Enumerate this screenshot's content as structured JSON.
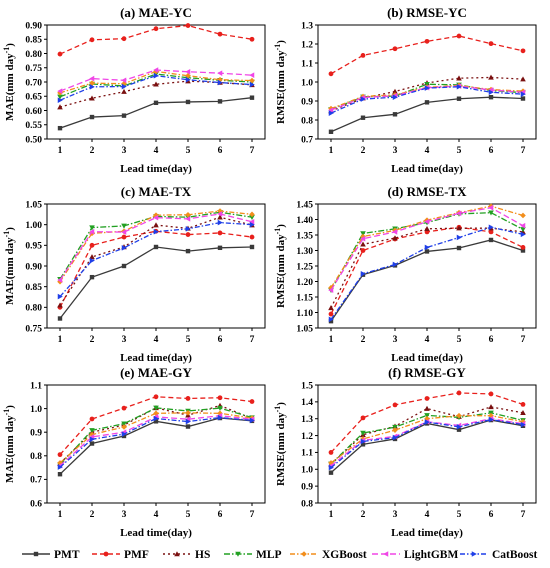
{
  "series_styles": [
    {
      "name": "PMT",
      "color": "#3a3a3a",
      "dash": "",
      "marker": "square"
    },
    {
      "name": "PMF",
      "color": "#e8201c",
      "dash": "5,3",
      "marker": "circle"
    },
    {
      "name": "HS",
      "color": "#7a1010",
      "dash": "2,3",
      "marker": "triangle-up"
    },
    {
      "name": "MLP",
      "color": "#22a022",
      "dash": "6,2,1.5,2",
      "marker": "triangle-down"
    },
    {
      "name": "XGBoost",
      "color": "#f28e1c",
      "dash": "5,2,1.5,2",
      "marker": "diamond"
    },
    {
      "name": "LightGBM",
      "color": "#f046e6",
      "dash": "6,3",
      "marker": "triangle-left"
    },
    {
      "name": "CatBoost",
      "color": "#1f3fe8",
      "dash": "5,2,1.5,2",
      "marker": "triangle-right"
    }
  ],
  "chart_data": [
    {
      "type": "line",
      "title": "(a) MAE-YC",
      "xlabel": "Lead time(day)",
      "ylabel": "MAE(mm day-1)",
      "categories": [
        1,
        2,
        3,
        4,
        5,
        6,
        7
      ],
      "ylim": [
        0.5,
        0.9
      ],
      "yticks": [
        "0.50",
        "0.55",
        "0.60",
        "0.65",
        "0.70",
        "0.75",
        "0.80",
        "0.85",
        "0.90"
      ],
      "ytick_values": [
        0.5,
        0.55,
        0.6,
        0.65,
        0.7,
        0.75,
        0.8,
        0.85,
        0.9
      ],
      "series": [
        {
          "name": "PMT",
          "values": [
            0.538,
            0.577,
            0.582,
            0.627,
            0.63,
            0.632,
            0.645
          ]
        },
        {
          "name": "PMF",
          "values": [
            0.798,
            0.848,
            0.852,
            0.887,
            0.898,
            0.868,
            0.85
          ]
        },
        {
          "name": "HS",
          "values": [
            0.612,
            0.643,
            0.666,
            0.692,
            0.703,
            0.698,
            0.69
          ]
        },
        {
          "name": "MLP",
          "values": [
            0.648,
            0.693,
            0.686,
            0.728,
            0.715,
            0.706,
            0.7
          ]
        },
        {
          "name": "XGBoost",
          "values": [
            0.662,
            0.696,
            0.694,
            0.737,
            0.722,
            0.708,
            0.705
          ]
        },
        {
          "name": "LightGBM",
          "values": [
            0.668,
            0.712,
            0.706,
            0.742,
            0.736,
            0.731,
            0.724
          ]
        },
        {
          "name": "CatBoost",
          "values": [
            0.636,
            0.683,
            0.684,
            0.722,
            0.708,
            0.698,
            0.691
          ]
        }
      ]
    },
    {
      "type": "line",
      "title": "(b) RMSE-YC",
      "xlabel": "Lead time(day)",
      "ylabel": "RMSE(mm day-1)",
      "categories": [
        1,
        2,
        3,
        4,
        5,
        6,
        7
      ],
      "ylim": [
        0.7,
        1.3
      ],
      "yticks": [
        "0.7",
        "0.8",
        "0.9",
        "1.0",
        "1.1",
        "1.2",
        "1.3"
      ],
      "ytick_values": [
        0.7,
        0.8,
        0.9,
        1.0,
        1.1,
        1.2,
        1.3
      ],
      "series": [
        {
          "name": "PMT",
          "values": [
            0.738,
            0.812,
            0.83,
            0.893,
            0.912,
            0.92,
            0.913
          ]
        },
        {
          "name": "PMF",
          "values": [
            1.043,
            1.14,
            1.175,
            1.214,
            1.242,
            1.202,
            1.164
          ]
        },
        {
          "name": "HS",
          "values": [
            0.847,
            0.915,
            0.95,
            0.995,
            1.02,
            1.024,
            1.015
          ]
        },
        {
          "name": "MLP",
          "values": [
            0.855,
            0.922,
            0.926,
            0.988,
            0.985,
            0.955,
            0.944
          ]
        },
        {
          "name": "XGBoost",
          "values": [
            0.86,
            0.924,
            0.932,
            0.972,
            0.982,
            0.96,
            0.952
          ]
        },
        {
          "name": "LightGBM",
          "values": [
            0.852,
            0.918,
            0.928,
            0.97,
            0.978,
            0.958,
            0.946
          ]
        },
        {
          "name": "CatBoost",
          "values": [
            0.836,
            0.91,
            0.92,
            0.968,
            0.975,
            0.946,
            0.936
          ]
        }
      ]
    },
    {
      "type": "line",
      "title": "(c) MAE-TX",
      "xlabel": "Lead time(day)",
      "ylabel": "MAE(mm day-1)",
      "categories": [
        1,
        2,
        3,
        4,
        5,
        6,
        7
      ],
      "ylim": [
        0.75,
        1.05
      ],
      "yticks": [
        "0.75",
        "0.80",
        "0.85",
        "0.90",
        "0.95",
        "1.00",
        "1.05"
      ],
      "ytick_values": [
        0.75,
        0.8,
        0.85,
        0.9,
        0.95,
        1.0,
        1.05
      ],
      "series": [
        {
          "name": "PMT",
          "values": [
            0.773,
            0.873,
            0.9,
            0.946,
            0.936,
            0.944,
            0.946
          ]
        },
        {
          "name": "PMF",
          "values": [
            0.8,
            0.95,
            0.97,
            0.984,
            0.976,
            0.98,
            0.97
          ]
        },
        {
          "name": "HS",
          "values": [
            0.805,
            0.922,
            0.946,
            0.999,
            0.991,
            1.018,
            0.999
          ]
        },
        {
          "name": "MLP",
          "values": [
            0.868,
            0.993,
            0.997,
            1.02,
            1.018,
            1.03,
            1.018
          ]
        },
        {
          "name": "XGBoost",
          "values": [
            0.862,
            0.979,
            0.984,
            1.023,
            1.024,
            1.033,
            1.025
          ]
        },
        {
          "name": "LightGBM",
          "values": [
            0.866,
            0.983,
            0.982,
            1.017,
            1.014,
            1.026,
            1.007
          ]
        },
        {
          "name": "CatBoost",
          "values": [
            0.826,
            0.913,
            0.944,
            0.983,
            0.99,
            1.005,
            1.0
          ]
        }
      ]
    },
    {
      "type": "line",
      "title": "(d) RMSE-TX",
      "xlabel": "Lead time(day)",
      "ylabel": "RMSE(mm day-1)",
      "categories": [
        1,
        2,
        3,
        4,
        5,
        6,
        7
      ],
      "ylim": [
        1.05,
        1.45
      ],
      "yticks": [
        "1.05",
        "1.10",
        "1.15",
        "1.20",
        "1.25",
        "1.30",
        "1.35",
        "1.40",
        "1.45"
      ],
      "ytick_values": [
        1.05,
        1.1,
        1.15,
        1.2,
        1.25,
        1.3,
        1.35,
        1.4,
        1.45
      ],
      "series": [
        {
          "name": "PMT",
          "values": [
            1.072,
            1.222,
            1.252,
            1.297,
            1.308,
            1.334,
            1.3
          ]
        },
        {
          "name": "PMF",
          "values": [
            1.095,
            1.3,
            1.337,
            1.36,
            1.375,
            1.36,
            1.31
          ]
        },
        {
          "name": "HS",
          "values": [
            1.115,
            1.32,
            1.34,
            1.37,
            1.372,
            1.372,
            1.36
          ]
        },
        {
          "name": "MLP",
          "values": [
            1.172,
            1.355,
            1.37,
            1.39,
            1.418,
            1.422,
            1.368
          ]
        },
        {
          "name": "XGBoost",
          "values": [
            1.18,
            1.345,
            1.365,
            1.398,
            1.422,
            1.443,
            1.413
          ]
        },
        {
          "name": "LightGBM",
          "values": [
            1.172,
            1.338,
            1.36,
            1.393,
            1.42,
            1.438,
            1.38
          ]
        },
        {
          "name": "CatBoost",
          "values": [
            1.078,
            1.225,
            1.255,
            1.31,
            1.342,
            1.375,
            1.352
          ]
        }
      ]
    },
    {
      "type": "line",
      "title": "(e) MAE-GY",
      "xlabel": "Lead time(day)",
      "ylabel": "MAE(mm day-1)",
      "categories": [
        1,
        2,
        3,
        4,
        5,
        6,
        7
      ],
      "ylim": [
        0.6,
        1.1
      ],
      "yticks": [
        "0.6",
        "0.7",
        "0.8",
        "0.9",
        "1.0",
        "1.1"
      ],
      "ytick_values": [
        0.6,
        0.7,
        0.8,
        0.9,
        1.0,
        1.1
      ],
      "series": [
        {
          "name": "PMT",
          "values": [
            0.722,
            0.852,
            0.884,
            0.946,
            0.924,
            0.96,
            0.948
          ]
        },
        {
          "name": "PMF",
          "values": [
            0.805,
            0.956,
            1.002,
            1.05,
            1.043,
            1.046,
            1.03
          ]
        },
        {
          "name": "HS",
          "values": [
            0.768,
            0.9,
            0.93,
            1.003,
            0.972,
            1.013,
            0.958
          ]
        },
        {
          "name": "MLP",
          "values": [
            0.762,
            0.908,
            0.936,
            1.003,
            0.99,
            1.002,
            0.962
          ]
        },
        {
          "name": "XGBoost",
          "values": [
            0.77,
            0.89,
            0.922,
            0.98,
            0.982,
            0.98,
            0.96
          ]
        },
        {
          "name": "LightGBM",
          "values": [
            0.758,
            0.88,
            0.9,
            0.965,
            0.955,
            0.97,
            0.955
          ]
        },
        {
          "name": "CatBoost",
          "values": [
            0.752,
            0.87,
            0.892,
            0.958,
            0.945,
            0.962,
            0.95
          ]
        }
      ]
    },
    {
      "type": "line",
      "title": "(f) RMSE-GY",
      "xlabel": "Lead time(day)",
      "ylabel": "RMSE(mm day-1)",
      "categories": [
        1,
        2,
        3,
        4,
        5,
        6,
        7
      ],
      "ylim": [
        0.8,
        1.5
      ],
      "yticks": [
        "0.8",
        "0.9",
        "1.0",
        "1.1",
        "1.2",
        "1.3",
        "1.4",
        "1.5"
      ],
      "ytick_values": [
        0.8,
        0.9,
        1.0,
        1.1,
        1.2,
        1.3,
        1.4,
        1.5
      ],
      "series": [
        {
          "name": "PMT",
          "values": [
            0.98,
            1.148,
            1.18,
            1.272,
            1.235,
            1.292,
            1.258
          ]
        },
        {
          "name": "PMF",
          "values": [
            1.1,
            1.305,
            1.382,
            1.42,
            1.453,
            1.447,
            1.385
          ]
        },
        {
          "name": "HS",
          "values": [
            1.03,
            1.205,
            1.255,
            1.36,
            1.312,
            1.37,
            1.335
          ]
        },
        {
          "name": "MLP",
          "values": [
            1.032,
            1.215,
            1.25,
            1.32,
            1.308,
            1.335,
            1.29
          ]
        },
        {
          "name": "XGBoost",
          "values": [
            1.038,
            1.18,
            1.232,
            1.3,
            1.318,
            1.318,
            1.282
          ]
        },
        {
          "name": "LightGBM",
          "values": [
            1.02,
            1.172,
            1.195,
            1.282,
            1.26,
            1.3,
            1.27
          ]
        },
        {
          "name": "CatBoost",
          "values": [
            1.01,
            1.165,
            1.188,
            1.28,
            1.252,
            1.295,
            1.265
          ]
        }
      ]
    }
  ]
}
